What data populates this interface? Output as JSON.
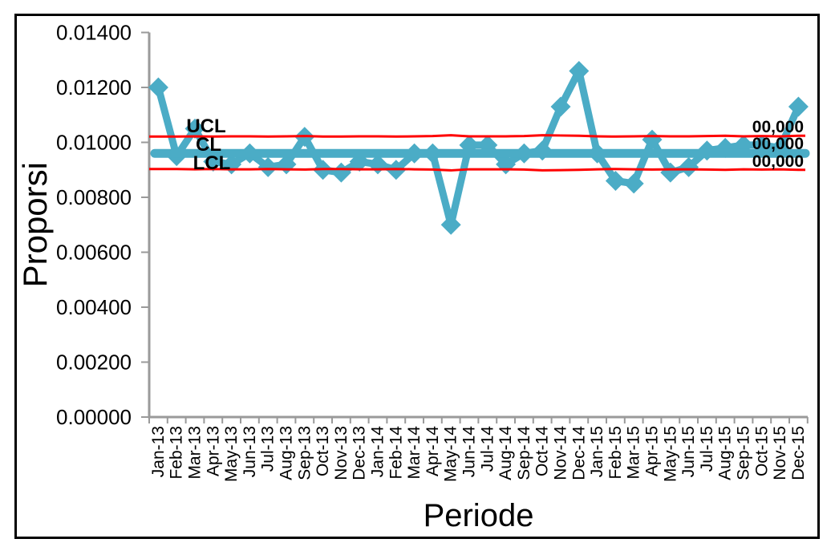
{
  "figure": {
    "background": "#FFFFFF",
    "border_color": "#000000"
  },
  "colors": {
    "series_teal": "#4BACC6",
    "control_limit_red": "#FF0000",
    "axis_gray": "#9A9A9A",
    "text_black": "#000000"
  },
  "chart_data": {
    "type": "line",
    "title": "",
    "xlabel": "Periode",
    "ylabel": "Proporsi",
    "ylim": [
      0,
      0.014
    ],
    "ytick_step": 0.002,
    "ytick_labels": [
      "0.00000",
      "0.00200",
      "0.00400",
      "0.00600",
      "0.00800",
      "0.01000",
      "0.01200",
      "0.01400"
    ],
    "grid": false,
    "legend": "none",
    "categories": [
      "Jan-13",
      "Feb-13",
      "Mar-13",
      "Apr-13",
      "May-13",
      "Jun-13",
      "Jul-13",
      "Aug-13",
      "Sep-13",
      "Oct-13",
      "Nov-13",
      "Dec-13",
      "Jan-14",
      "Feb-14",
      "Mar-14",
      "Apr-14",
      "May-14",
      "Jun-14",
      "Jul-14",
      "Aug-14",
      "Sep-14",
      "Oct-14",
      "Nov-14",
      "Dec-14",
      "Jan-15",
      "Feb-15",
      "Mar-15",
      "Apr-15",
      "May-15",
      "Jun-15",
      "Jul-15",
      "Aug-15",
      "Sep-15",
      "Oct-15",
      "Nov-15",
      "Dec-15"
    ],
    "series": [
      {
        "name": "Proporsi",
        "color": "#4BACC6",
        "marker": "diamond",
        "values": [
          0.012,
          0.0095,
          0.0105,
          0.0093,
          0.0092,
          0.0096,
          0.0091,
          0.0092,
          0.0102,
          0.009,
          0.0089,
          0.0093,
          0.0092,
          0.009,
          0.0096,
          0.0096,
          0.007,
          0.0099,
          0.0099,
          0.0092,
          0.0096,
          0.0097,
          0.0113,
          0.0126,
          0.0096,
          0.0086,
          0.0085,
          0.0101,
          0.0089,
          0.0091,
          0.0097,
          0.0098,
          0.0099,
          0.0099,
          0.0098,
          0.0113
        ]
      },
      {
        "name": "UCL",
        "color": "#FF0000",
        "marker": "none",
        "values": [
          0.01021,
          0.01021,
          0.01022,
          0.01021,
          0.01022,
          0.01022,
          0.01021,
          0.01022,
          0.01023,
          0.01021,
          0.01021,
          0.01022,
          0.01022,
          0.01021,
          0.01022,
          0.01023,
          0.01026,
          0.01022,
          0.01022,
          0.01022,
          0.01023,
          0.01026,
          0.01025,
          0.01024,
          0.01022,
          0.01021,
          0.01022,
          0.01023,
          0.01022,
          0.01022,
          0.01023,
          0.01024,
          0.01022,
          0.01023,
          0.01022,
          0.01024
        ]
      },
      {
        "name": "CL",
        "color": "#4BACC6",
        "marker": "none",
        "value": 0.0096
      },
      {
        "name": "LCL",
        "color": "#FF0000",
        "marker": "none",
        "values": [
          0.00903,
          0.00903,
          0.00902,
          0.00903,
          0.00902,
          0.00902,
          0.00903,
          0.00902,
          0.00901,
          0.00903,
          0.00903,
          0.00902,
          0.00902,
          0.00903,
          0.00902,
          0.00901,
          0.00898,
          0.00902,
          0.00902,
          0.00902,
          0.00901,
          0.00898,
          0.00899,
          0.009,
          0.00902,
          0.00903,
          0.00902,
          0.00901,
          0.00902,
          0.00902,
          0.00901,
          0.009,
          0.00902,
          0.00901,
          0.00902,
          0.009
        ]
      }
    ],
    "annotations": {
      "ucl_label": "UCL",
      "cl_label": "CL",
      "lcl_label": "LCL",
      "ucl_end_label": "00,000",
      "cl_end_label": "00,000",
      "lcl_end_label": "00,000"
    }
  }
}
